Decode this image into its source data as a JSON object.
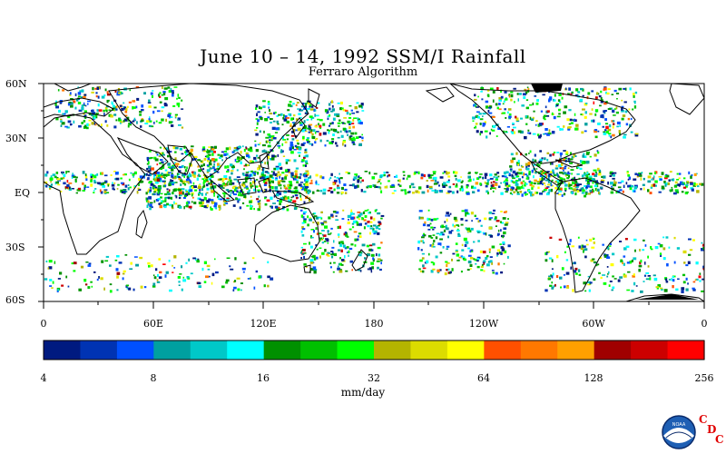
{
  "title": "June 10 – 14, 1992 SSM/I Rainfall",
  "subtitle": "Ferraro Algorithm",
  "lat_labels": [
    "60N",
    "30N",
    "EQ",
    "30S",
    "60S"
  ],
  "lon_labels": [
    "0",
    "60E",
    "120E",
    "180",
    "120W",
    "60W",
    "0"
  ],
  "colorbar": {
    "units": "mm/day",
    "tick_labels": [
      "4",
      "8",
      "16",
      "32",
      "64",
      "128",
      "256"
    ],
    "colors": [
      "#001a80",
      "#0033b3",
      "#0050ff",
      "#00a0a0",
      "#00c8c8",
      "#00ffff",
      "#009000",
      "#00c000",
      "#00ff00",
      "#b4b400",
      "#dcdc00",
      "#ffff00",
      "#ff5000",
      "#ff7800",
      "#ffa000",
      "#a00000",
      "#cc0000",
      "#ff0000"
    ]
  },
  "logos": {
    "noaa": "NOAA",
    "cdc_letters": [
      "C",
      "D",
      "C"
    ]
  }
}
